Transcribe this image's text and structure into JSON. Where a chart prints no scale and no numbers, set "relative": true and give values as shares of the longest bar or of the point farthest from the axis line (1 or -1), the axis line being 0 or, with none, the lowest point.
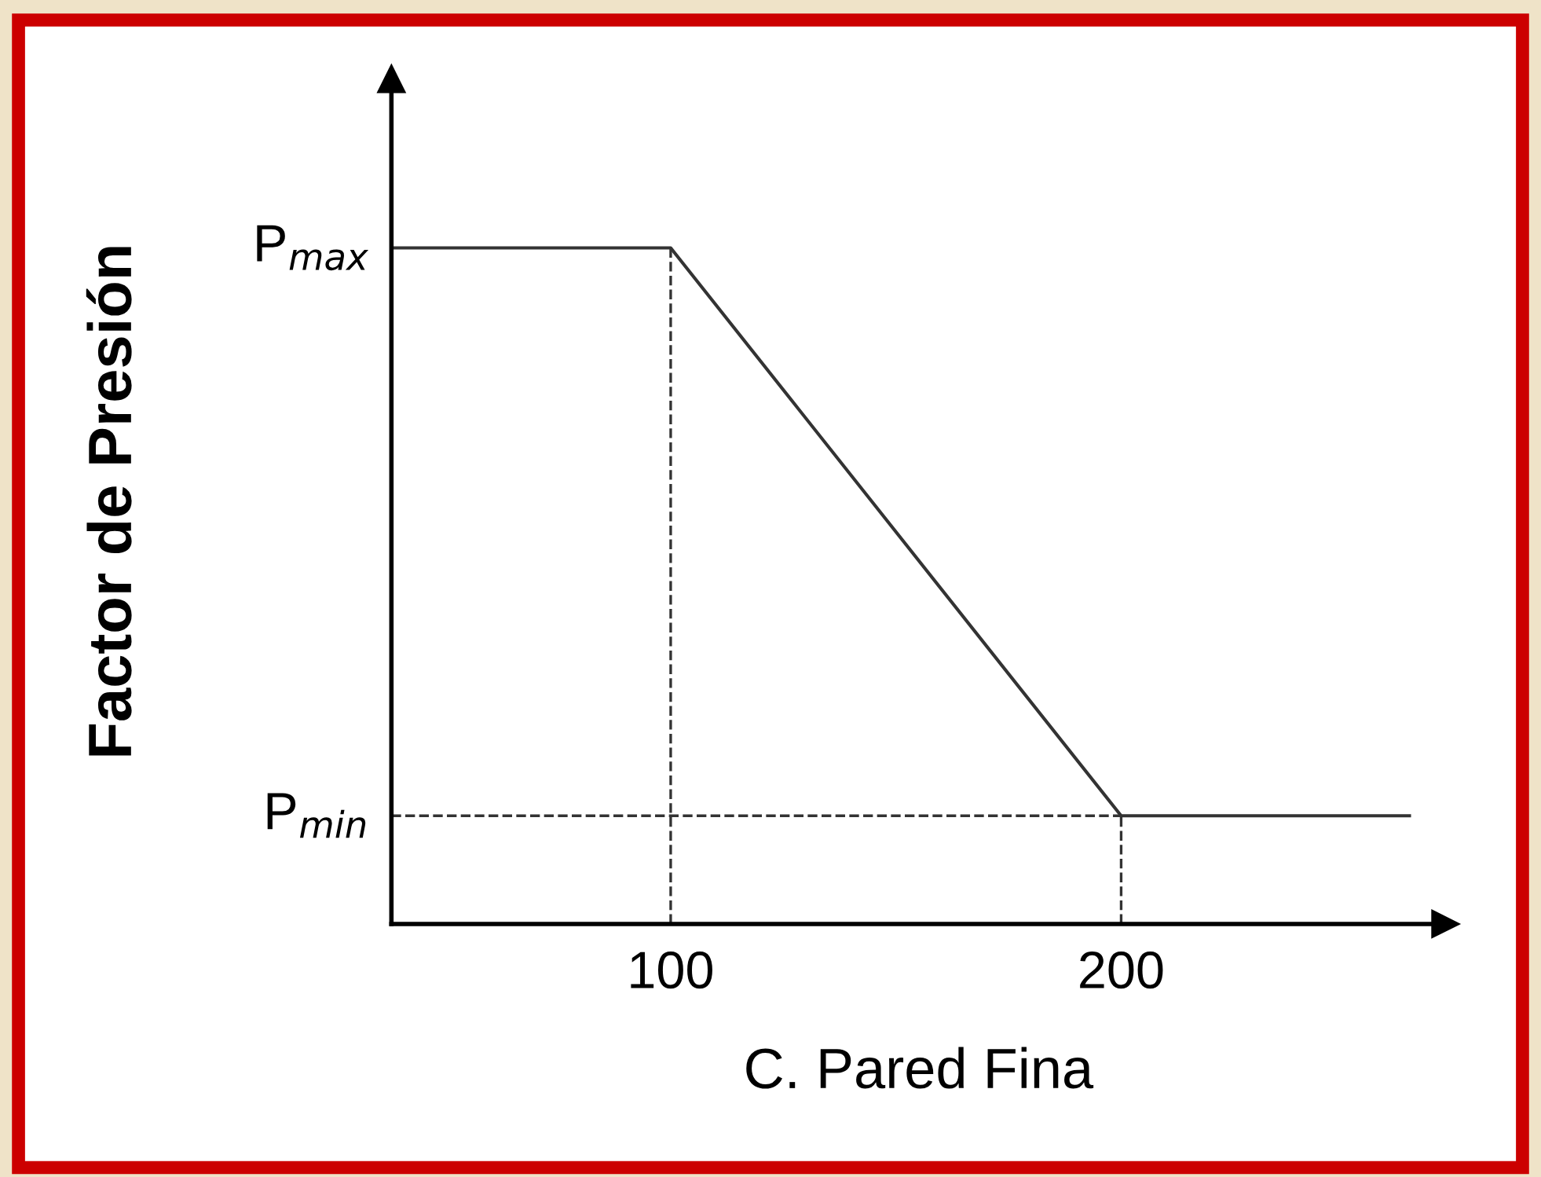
{
  "chart_data": {
    "type": "line",
    "xlabel": "C. Pared Fina",
    "ylabel": "Factor de Presión",
    "x": [
      38,
      100,
      200,
      264
    ],
    "series": [
      {
        "color": "#333333",
        "values": [
          1,
          1,
          0.16,
          0.16
        ]
      }
    ],
    "relative": true,
    "xlim": [
      38,
      272
    ],
    "xticks": [
      100,
      200
    ],
    "annotations": [
      {
        "text": "P$_{max}$",
        "x": 38,
        "y": 1
      },
      {
        "text": "P$_{min}$",
        "x": 38,
        "y": 0.16
      }
    ],
    "grid": false,
    "legend": false,
    "marker": "none",
    "line_style": "solid",
    "ref_lines": [
      {
        "axis": "x",
        "value": 100,
        "color": "#333333",
        "line_style": "dashed"
      },
      {
        "axis": "x",
        "value": 200,
        "color": "#333333",
        "line_style": "dashed"
      },
      {
        "axis": "y",
        "value": 0.16,
        "color": "#333333",
        "line_style": "dashed"
      }
    ]
  }
}
